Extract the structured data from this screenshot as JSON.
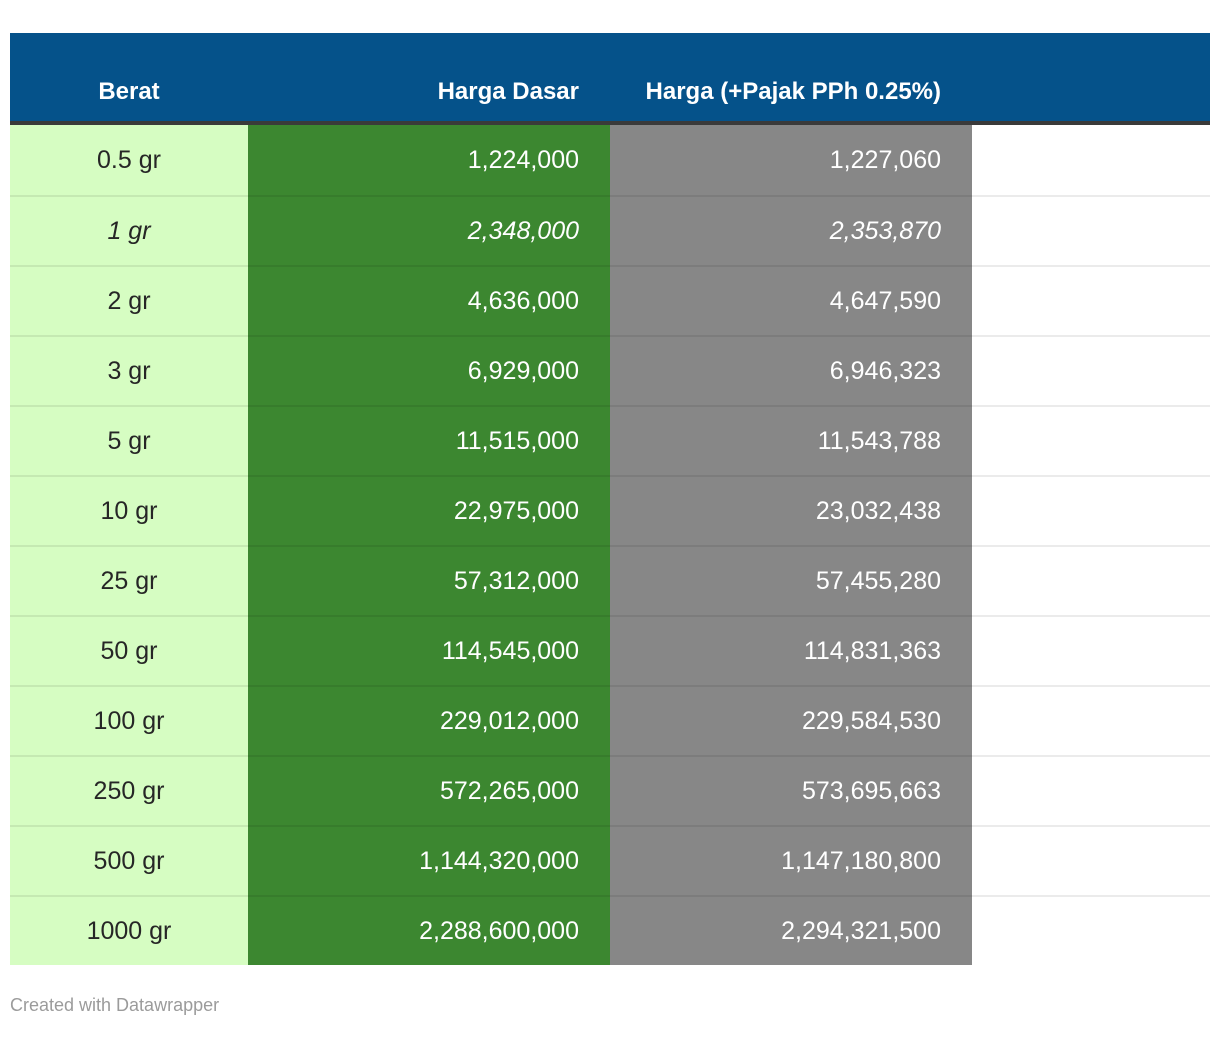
{
  "colors": {
    "header_bg": "#05528a",
    "header_border": "#3a3a3a",
    "weight_col_bg": "#d6fdc2",
    "base_col_bg": "#3c8730",
    "tax_col_bg": "#878787",
    "row_separator": "rgba(0,0,0,0.08)",
    "credit_text": "#9b9b9b"
  },
  "chart_data": {
    "type": "table",
    "columns": [
      "Berat",
      "Harga Dasar",
      "Harga (+Pajak PPh 0.25%)"
    ],
    "rows": [
      {
        "weight": "0.5 gr",
        "base": "1,224,000",
        "tax": "1,227,060"
      },
      {
        "weight": "1 gr",
        "base": "2,348,000",
        "tax": "2,353,870",
        "italic": true
      },
      {
        "weight": "2 gr",
        "base": "4,636,000",
        "tax": "4,647,590"
      },
      {
        "weight": "3 gr",
        "base": "6,929,000",
        "tax": "6,946,323"
      },
      {
        "weight": "5 gr",
        "base": "11,515,000",
        "tax": "11,543,788"
      },
      {
        "weight": "10 gr",
        "base": "22,975,000",
        "tax": "23,032,438"
      },
      {
        "weight": "25 gr",
        "base": "57,312,000",
        "tax": "57,455,280"
      },
      {
        "weight": "50 gr",
        "base": "114,545,000",
        "tax": "114,831,363"
      },
      {
        "weight": "100 gr",
        "base": "229,012,000",
        "tax": "229,584,530"
      },
      {
        "weight": "250 gr",
        "base": "572,265,000",
        "tax": "573,695,663"
      },
      {
        "weight": "500 gr",
        "base": "1,144,320,000",
        "tax": "1,147,180,800"
      },
      {
        "weight": "1000 gr",
        "base": "2,288,600,000",
        "tax": "2,294,321,500"
      }
    ]
  },
  "footer": {
    "credit": "Created with Datawrapper"
  }
}
